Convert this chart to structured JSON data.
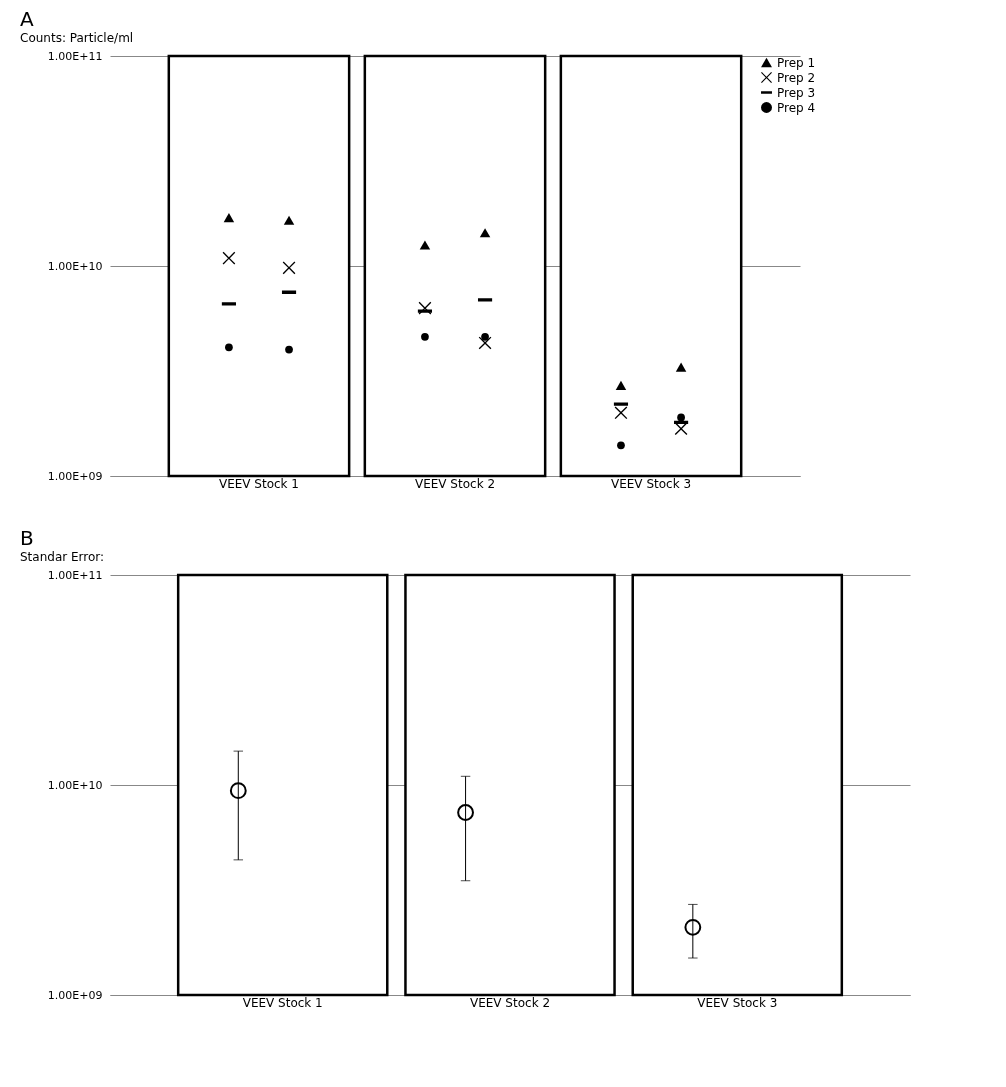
{
  "chart_data": [
    {
      "type": "scatter",
      "title": "A",
      "subtitle": "Counts: Particle/ml",
      "log": "y",
      "grid": "y",
      "legend": "right",
      "categories": [
        "VEEV Stock 1",
        "VEEV Stock 2",
        "VEEV Stock 3"
      ],
      "ylim": [
        1000000000.0,
        100000000000.0
      ],
      "yticks": [
        {
          "value": 1000000000.0,
          "label": "1.00E+09"
        },
        {
          "value": 10000000000.0,
          "label": "1.00E+10"
        },
        {
          "value": 100000000000.0,
          "label": "1.00E+11"
        }
      ],
      "series": [
        {
          "type": "bar",
          "color": "#ffffff",
          "values": [
            100000000000.0,
            100000000000.0,
            100000000000.0
          ]
        },
        {
          "name": "Prep 1",
          "color": "#000000",
          "marker": "triangle",
          "values": [
            17000000000.0,
            12600000000.0,
            2700000000.0
          ]
        },
        {
          "name": "Prep 2",
          "color": "#000000",
          "marker": "cross",
          "values": [
            10900000000.0,
            6300000000.0,
            2000000000.0
          ]
        },
        {
          "name": "Prep 3",
          "color": "#000000",
          "values": [
            6600000000.0,
            6100000000.0,
            2200000000.0
          ]
        },
        {
          "name": "Prep 4",
          "color": "#000000",
          "marker": "circle",
          "values": [
            4100000000.0,
            4600000000.0,
            1400000000.0
          ]
        },
        {
          "color": "#000000",
          "marker": "triangle",
          "values": [
            16500000000.0,
            14400000000.0,
            3300000000.0
          ]
        },
        {
          "color": "#000000",
          "marker": "cross",
          "values": [
            9800000000.0,
            4300000000.0,
            1680000000.0
          ]
        },
        {
          "color": "#000000",
          "values": [
            7500000000.0,
            6900000000.0,
            1800000000.0
          ]
        },
        {
          "color": "#000000",
          "marker": "circle",
          "values": [
            4000000000.0,
            4600000000.0,
            1900000000.0
          ]
        }
      ]
    },
    {
      "type": "scatter",
      "title": "B",
      "subtitle": "Standar Error:",
      "log": "y",
      "grid": "y",
      "categories": [
        "VEEV Stock 1",
        "VEEV Stock 2",
        "VEEV Stock 3"
      ],
      "ylim": [
        1000000000.0,
        100000000000.0
      ],
      "yticks": [
        {
          "value": 1000000000.0,
          "label": "1.00E+09"
        },
        {
          "value": 10000000000.0,
          "label": "1.00E+10"
        },
        {
          "value": 100000000000.0,
          "label": "1.00E+11"
        }
      ],
      "series": [
        {
          "type": "bar",
          "color": "#ffffff",
          "values": [
            100000000000.0,
            100000000000.0,
            100000000000.0
          ]
        },
        {
          "color": "#000000",
          "marker": "circle_open",
          "values": [
            9400000000.0,
            7400000000.0,
            2100000000.0
          ],
          "errors": [
            [
              4400000000.0,
              14500000000.0
            ],
            [
              3500000000.0,
              11000000000.0
            ],
            [
              1500000000.0,
              2700000000.0
            ]
          ]
        }
      ]
    }
  ]
}
